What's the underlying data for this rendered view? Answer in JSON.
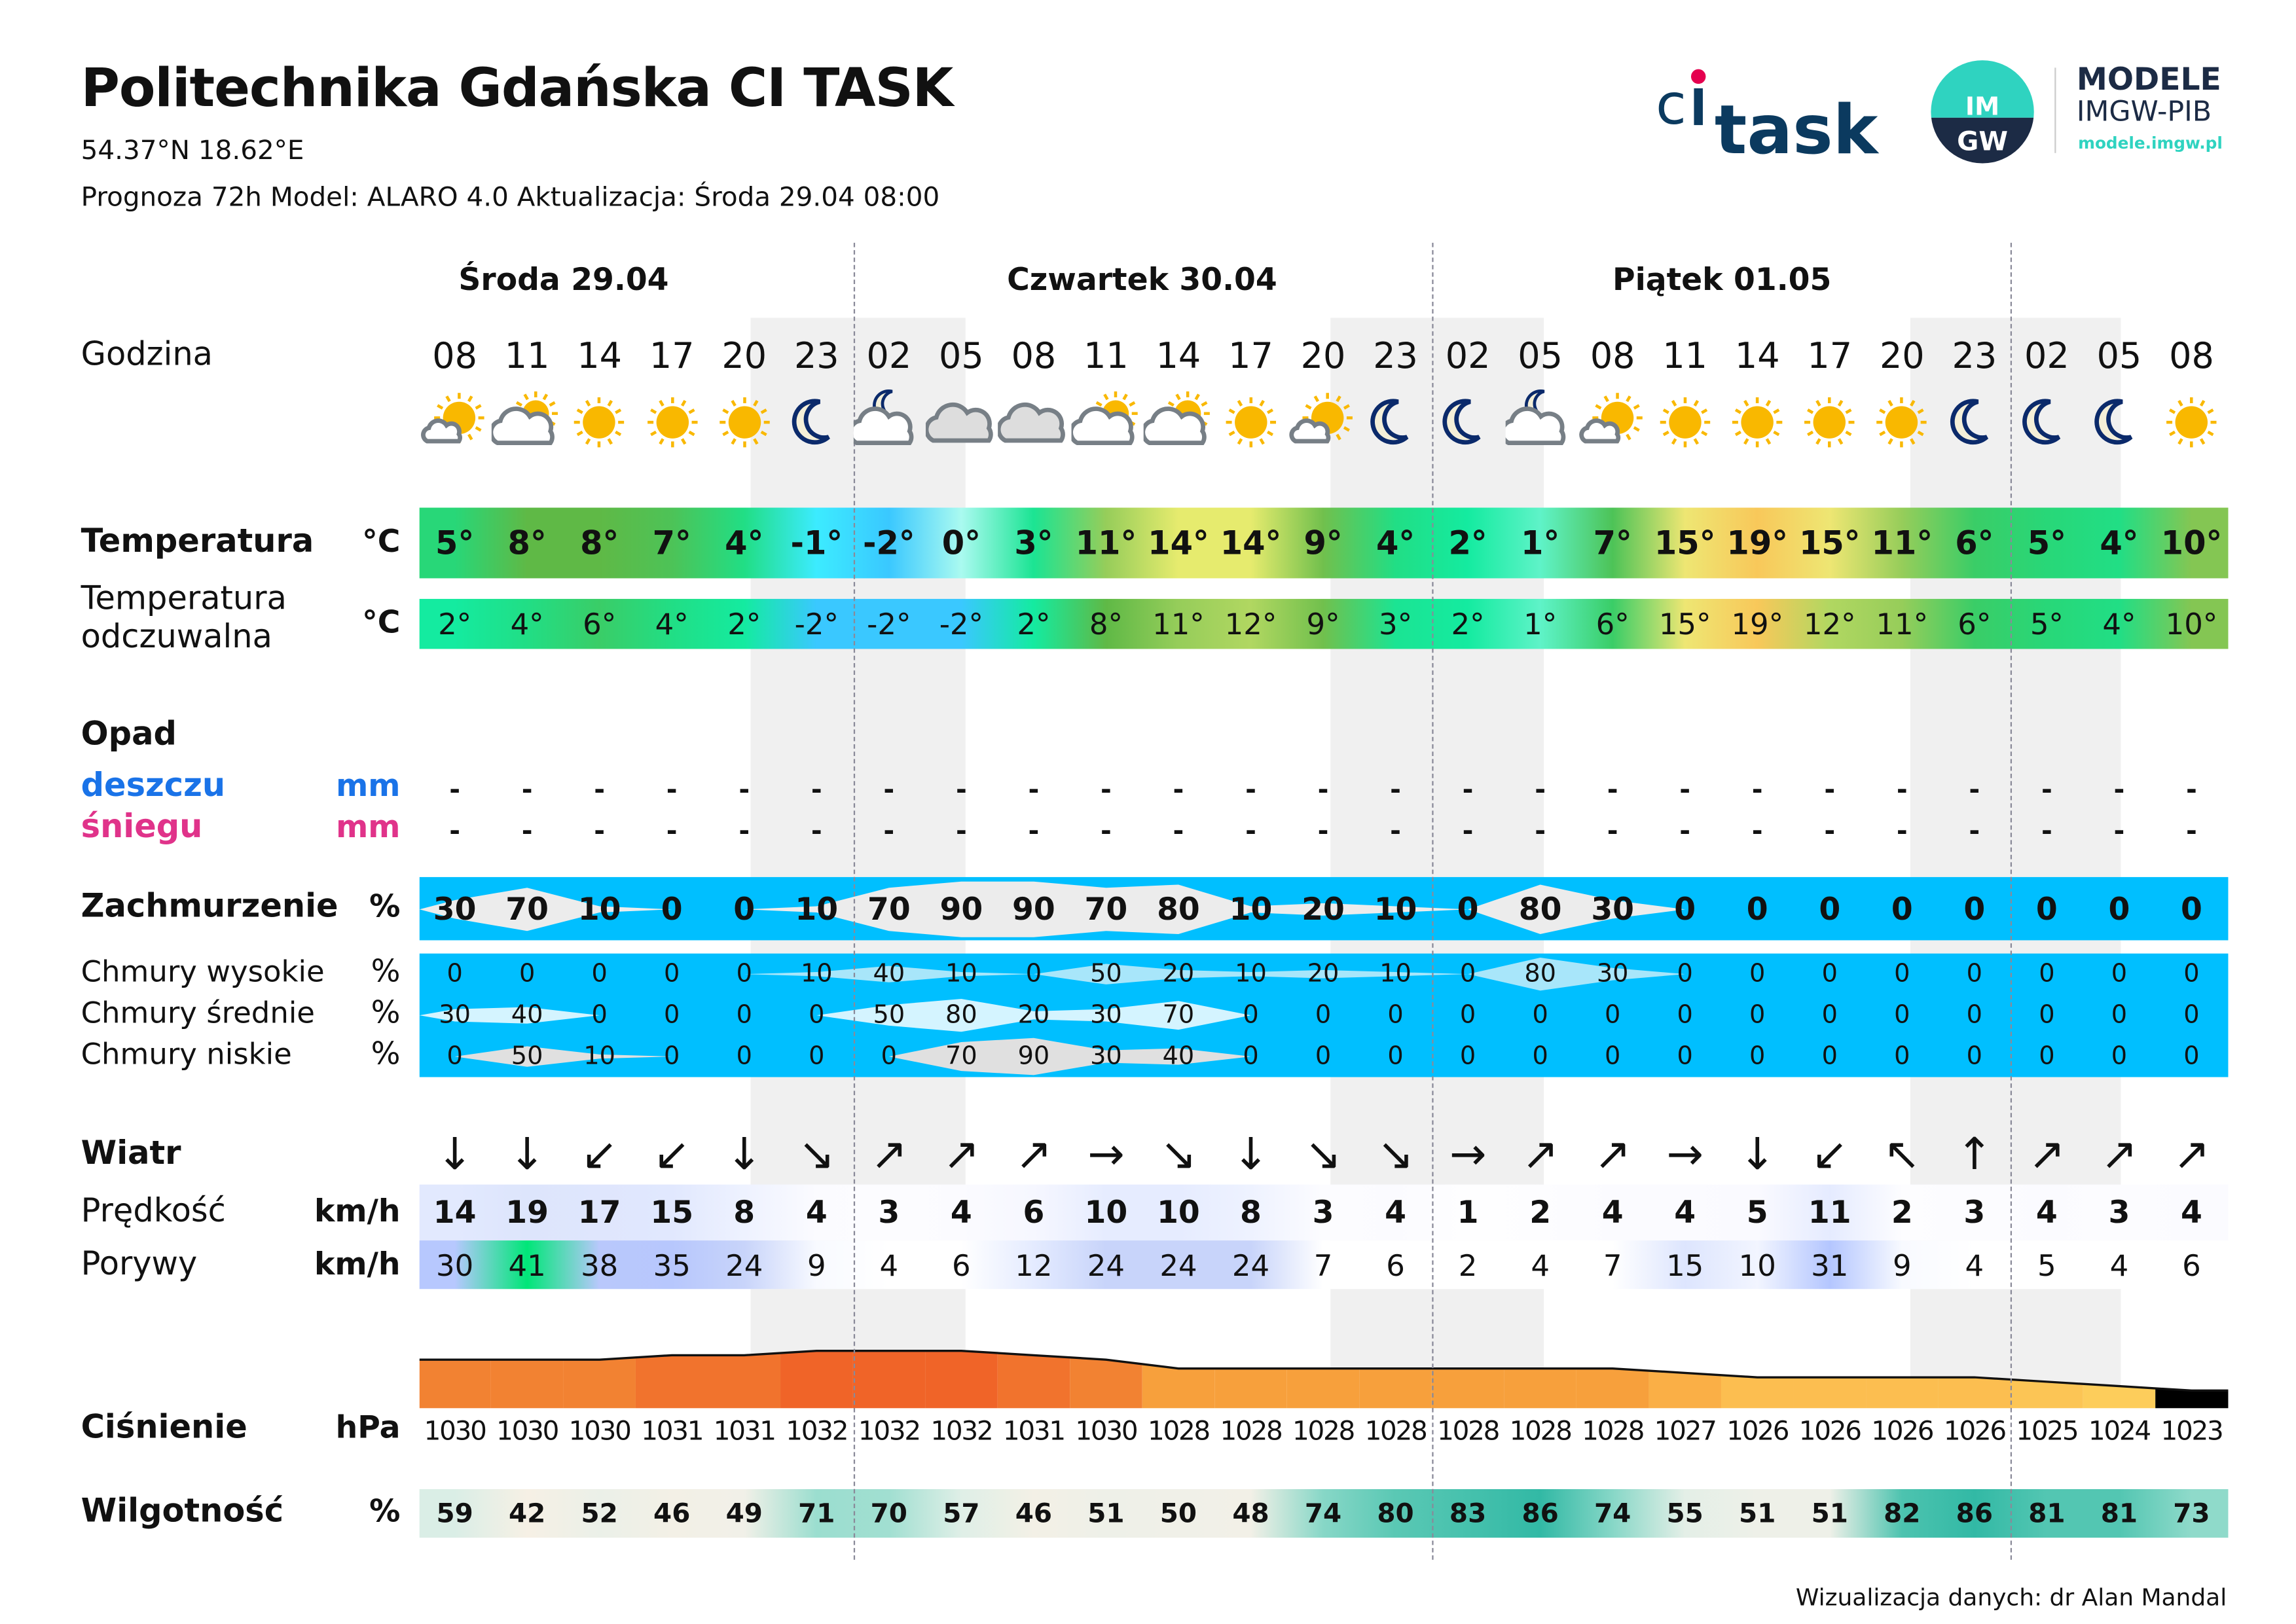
{
  "header": {
    "title": "Politechnika Gdańska CI TASK",
    "coords": "54.37°N  18.62°E",
    "info": "Prognoza 72h   Model:  ALARO 4.0   Aktualizacja:  Środa 29.04 08:00"
  },
  "logos": {
    "citask": "citask",
    "imgw_line1": "MODELE",
    "imgw_line2": "IMGW-PIB",
    "imgw_url": "modele.imgw.pl",
    "imgw_emblem": "IMGW"
  },
  "days": [
    "Środa 29.04",
    "Czwartek 30.04",
    "Piątek 01.05"
  ],
  "labels": {
    "hour": "Godzina",
    "temp": "Temperatura",
    "temp_unit": "°C",
    "feels_1": "Temperatura",
    "feels_2": "odczuwalna",
    "feels_unit": "°C",
    "precip": "Opad",
    "rain": "deszczu",
    "rain_unit": "mm",
    "snow": "śniegu",
    "snow_unit": "mm",
    "cloud": "Zachmurzenie",
    "cloud_unit": "%",
    "high": "Chmury wysokie",
    "mid": "Chmury średnie",
    "low": "Chmury niskie",
    "pct": "%",
    "wind": "Wiatr",
    "speed": "Prędkość",
    "speed_unit": "km/h",
    "gust": "Porywy",
    "gust_unit": "km/h",
    "pressure": "Ciśnienie",
    "pressure_unit": "hPa",
    "humidity": "Wilgotność",
    "humidity_unit": "%"
  },
  "hours": [
    "08",
    "11",
    "14",
    "17",
    "20",
    "23",
    "02",
    "05",
    "08",
    "11",
    "14",
    "17",
    "20",
    "23",
    "02",
    "05",
    "08",
    "11",
    "14",
    "17",
    "20",
    "23",
    "02",
    "05",
    "08"
  ],
  "icons": [
    "sun-small-cloud",
    "cloud-sun",
    "sun",
    "sun",
    "sun",
    "moon",
    "cloud-moon",
    "cloud",
    "cloud",
    "cloud-sun",
    "cloud-sun",
    "sun",
    "sun-small-cloud",
    "moon",
    "moon",
    "cloud-moon",
    "sun-small-cloud",
    "sun",
    "sun",
    "sun",
    "sun",
    "moon",
    "moon",
    "moon",
    "sun"
  ],
  "temperature": [
    5,
    8,
    8,
    7,
    4,
    -1,
    -2,
    0,
    3,
    11,
    14,
    14,
    9,
    4,
    2,
    1,
    7,
    15,
    19,
    15,
    11,
    6,
    5,
    4,
    10
  ],
  "feels_like": [
    2,
    4,
    6,
    4,
    2,
    -2,
    -2,
    -2,
    2,
    8,
    11,
    12,
    9,
    3,
    2,
    1,
    6,
    15,
    19,
    12,
    11,
    6,
    5,
    4,
    10
  ],
  "rain": [
    "-",
    "-",
    "-",
    "-",
    "-",
    "-",
    "-",
    "-",
    "-",
    "-",
    "-",
    "-",
    "-",
    "-",
    "-",
    "-",
    "-",
    "-",
    "-",
    "-",
    "-",
    "-",
    "-",
    "-",
    "-"
  ],
  "snow": [
    "-",
    "-",
    "-",
    "-",
    "-",
    "-",
    "-",
    "-",
    "-",
    "-",
    "-",
    "-",
    "-",
    "-",
    "-",
    "-",
    "-",
    "-",
    "-",
    "-",
    "-",
    "-",
    "-",
    "-",
    "-"
  ],
  "cloud_total": [
    30,
    70,
    10,
    0,
    0,
    10,
    70,
    90,
    90,
    70,
    80,
    10,
    20,
    10,
    0,
    80,
    30,
    0,
    0,
    0,
    0,
    0,
    0,
    0,
    0
  ],
  "cloud_high": [
    0,
    0,
    0,
    0,
    0,
    10,
    40,
    10,
    0,
    50,
    20,
    10,
    20,
    10,
    0,
    80,
    30,
    0,
    0,
    0,
    0,
    0,
    0,
    0,
    0
  ],
  "cloud_mid": [
    30,
    40,
    0,
    0,
    0,
    0,
    50,
    80,
    20,
    30,
    70,
    0,
    0,
    0,
    0,
    0,
    0,
    0,
    0,
    0,
    0,
    0,
    0,
    0,
    0
  ],
  "cloud_low": [
    0,
    50,
    10,
    0,
    0,
    0,
    0,
    70,
    90,
    30,
    40,
    0,
    0,
    0,
    0,
    0,
    0,
    0,
    0,
    0,
    0,
    0,
    0,
    0,
    0
  ],
  "wind_dir_arrows": [
    "↓",
    "↓",
    "↙",
    "↙",
    "↓",
    "↘",
    "↗",
    "↗",
    "↗",
    "→",
    "↘",
    "↓",
    "↘",
    "↘",
    "→",
    "↗",
    "↗",
    "→",
    "↓",
    "↙",
    "↖",
    "↑",
    "↗",
    "↗",
    "↗"
  ],
  "wind_speed": [
    14,
    19,
    17,
    15,
    8,
    4,
    3,
    4,
    6,
    10,
    10,
    8,
    3,
    4,
    1,
    2,
    4,
    4,
    5,
    11,
    2,
    3,
    4,
    3,
    4
  ],
  "wind_gust": [
    30,
    41,
    38,
    35,
    24,
    9,
    4,
    6,
    12,
    24,
    24,
    24,
    7,
    6,
    2,
    4,
    7,
    15,
    10,
    31,
    9,
    4,
    5,
    4,
    6
  ],
  "pressure": [
    1030,
    1030,
    1030,
    1031,
    1031,
    1032,
    1032,
    1032,
    1031,
    1030,
    1028,
    1028,
    1028,
    1028,
    1028,
    1028,
    1028,
    1027,
    1026,
    1026,
    1026,
    1026,
    1025,
    1024,
    1023
  ],
  "humidity": [
    59,
    42,
    52,
    46,
    49,
    71,
    70,
    57,
    46,
    51,
    50,
    48,
    74,
    80,
    83,
    86,
    74,
    55,
    51,
    51,
    82,
    86,
    81,
    81,
    73
  ],
  "colors": {
    "cloud_bg": "#00bfff",
    "rain": "#1a73e8",
    "snow": "#e0338a",
    "sun": "#f9b800",
    "moon": "#0b2a6b",
    "cloud_icon": "#777f86",
    "citask_dark": "#0b3a5f",
    "citask_red": "#e5004f",
    "imgw_teal": "#2fd3c0",
    "imgw_navy": "#1c2b45"
  },
  "footer": "Wizualizacja danych: dr Alan Mandal"
}
